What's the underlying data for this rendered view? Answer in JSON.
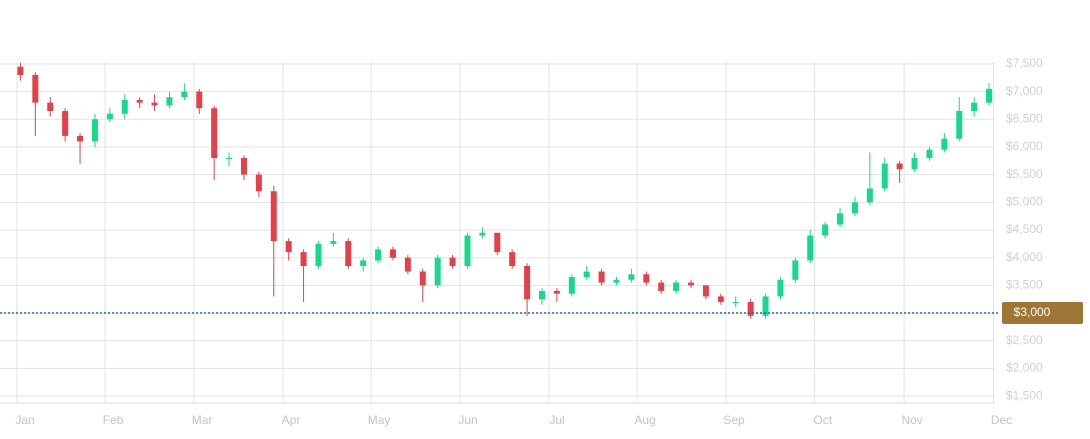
{
  "chart_data": {
    "type": "candlestick",
    "up_color": "#16d98a",
    "down_color": "#e5404a",
    "grid": true,
    "open": [
      7450,
      7300,
      6800,
      6650,
      6200,
      6100,
      6500,
      6600,
      6850,
      6800,
      6750,
      6900,
      7000,
      6700,
      5800,
      5800,
      5500,
      5200,
      4300,
      4100,
      3850,
      4250,
      4300,
      3850,
      3950,
      4150,
      4000,
      3750,
      3500,
      4000,
      3850,
      4400,
      4450,
      4100,
      3850,
      3250,
      3400,
      3350,
      3650,
      3750,
      3550,
      3600,
      3700,
      3550,
      3400,
      3550,
      3500,
      3300,
      3200,
      3200,
      2950,
      3300,
      3600,
      3950,
      4400,
      4600,
      4800,
      5000,
      5250,
      5700,
      5600,
      5800,
      5950,
      6150,
      6650,
      6800
    ],
    "high": [
      7520,
      7350,
      6900,
      6700,
      6250,
      6600,
      6700,
      6950,
      6900,
      6950,
      7000,
      7150,
      7050,
      6750,
      5900,
      5850,
      5550,
      5300,
      4350,
      4150,
      4300,
      4450,
      4350,
      4000,
      4200,
      4200,
      4050,
      3800,
      4050,
      4050,
      4450,
      4550,
      4450,
      4150,
      3900,
      3450,
      3450,
      3700,
      3850,
      3800,
      3650,
      3800,
      3750,
      3600,
      3600,
      3600,
      3500,
      3350,
      3300,
      3250,
      3350,
      3650,
      4000,
      4500,
      4650,
      4900,
      5100,
      5900,
      5800,
      5750,
      5900,
      6000,
      6250,
      6900,
      6900,
      7150
    ],
    "low": [
      7200,
      6200,
      6550,
      6100,
      5700,
      6000,
      6450,
      6500,
      6700,
      6650,
      6700,
      6850,
      6600,
      5400,
      5650,
      5400,
      5100,
      3300,
      3950,
      3200,
      3800,
      4200,
      3800,
      3750,
      3900,
      3950,
      3700,
      3200,
      3450,
      3800,
      3800,
      4350,
      4050,
      3800,
      2950,
      3150,
      3200,
      3300,
      3600,
      3500,
      3500,
      3550,
      3500,
      3350,
      3350,
      3450,
      3250,
      3150,
      3100,
      2900,
      2900,
      3250,
      3550,
      3900,
      4350,
      4550,
      4750,
      4950,
      5200,
      5350,
      5550,
      5750,
      5900,
      6100,
      6550,
      6750
    ],
    "close": [
      7300,
      6800,
      6650,
      6200,
      6100,
      6500,
      6600,
      6850,
      6800,
      6750,
      6900,
      7000,
      6700,
      5800,
      5800,
      5500,
      5200,
      4300,
      4100,
      3850,
      4250,
      4300,
      3850,
      3950,
      4150,
      4000,
      3750,
      3500,
      4000,
      3850,
      4400,
      4450,
      4100,
      3850,
      3250,
      3400,
      3350,
      3650,
      3750,
      3550,
      3600,
      3700,
      3550,
      3400,
      3550,
      3500,
      3300,
      3200,
      3200,
      2950,
      3300,
      3600,
      3950,
      4400,
      4600,
      4800,
      5000,
      5250,
      5700,
      5600,
      5800,
      5950,
      6150,
      6650,
      6800,
      7050
    ],
    "xlim": [
      -0.7,
      65.6
    ],
    "xticks": [
      {
        "value": -0.23,
        "label": "Jan"
      },
      {
        "value": 5.68,
        "label": "Feb"
      },
      {
        "value": 11.65,
        "label": "Mar"
      },
      {
        "value": 17.62,
        "label": "Apr"
      },
      {
        "value": 23.53,
        "label": "May"
      },
      {
        "value": 29.5,
        "label": "Jun"
      },
      {
        "value": 35.47,
        "label": "Jul"
      },
      {
        "value": 41.38,
        "label": "Aug"
      },
      {
        "value": 47.35,
        "label": "Sep"
      },
      {
        "value": 53.3,
        "label": "Oct"
      },
      {
        "value": 59.3,
        "label": "Nov"
      },
      {
        "value": 65.3,
        "label": "Dec"
      }
    ],
    "ylim": [
      1375,
      7535
    ],
    "yticks": [
      {
        "value": 1500,
        "label": "$1,500"
      },
      {
        "value": 2000,
        "label": "$2,000"
      },
      {
        "value": 2500,
        "label": "$2,500"
      },
      {
        "value": 3000,
        "label": "$3,000"
      },
      {
        "value": 3500,
        "label": "$3,500"
      },
      {
        "value": 4000,
        "label": "$4,000"
      },
      {
        "value": 4500,
        "label": "$4,500"
      },
      {
        "value": 5000,
        "label": "$5,000"
      },
      {
        "value": 5500,
        "label": "$5,500"
      },
      {
        "value": 6000,
        "label": "$6,000"
      },
      {
        "value": 6500,
        "label": "$6,500"
      },
      {
        "value": 7000,
        "label": "$7,000"
      },
      {
        "value": 7500,
        "label": "$7,500"
      }
    ],
    "price_line": {
      "value": 3000,
      "label": "$3,000",
      "color": "#1d5fd1",
      "label_color": "#a07636"
    }
  }
}
